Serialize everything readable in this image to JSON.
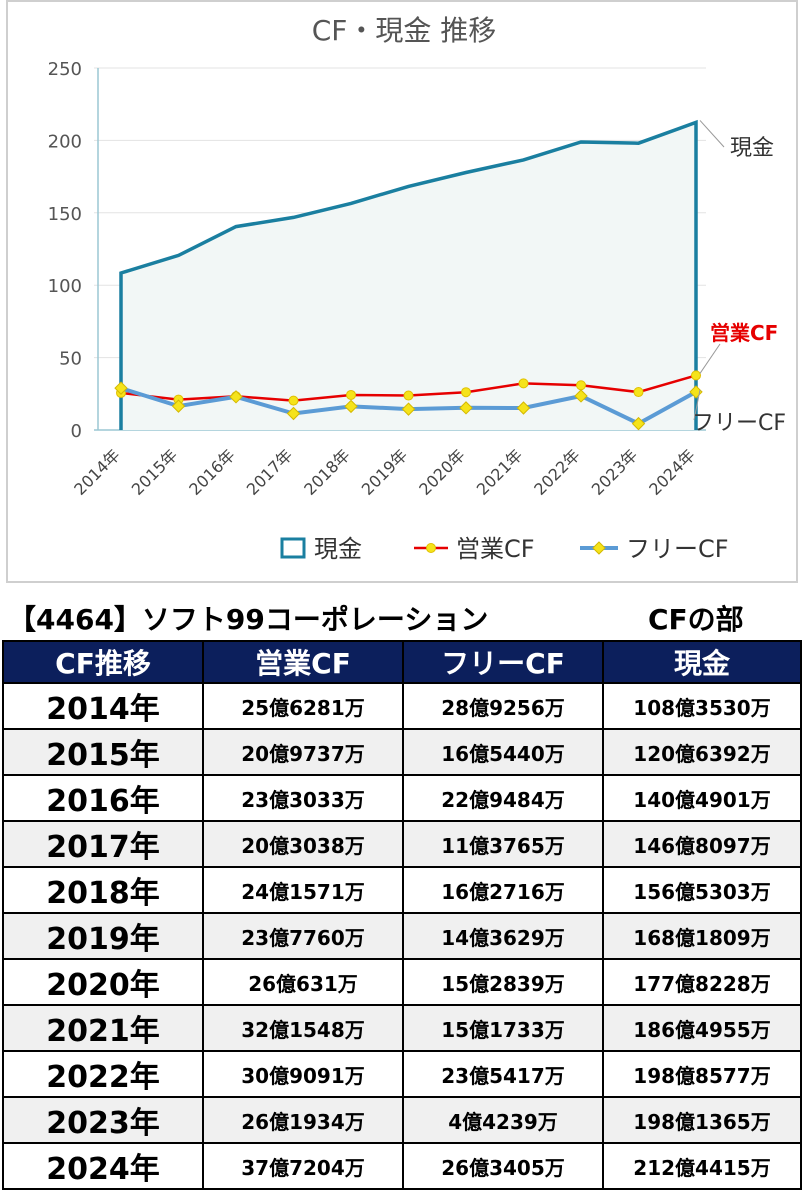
{
  "chart_data": {
    "type": "line",
    "title": "CF・現金 推移",
    "categories": [
      "2014年",
      "2015年",
      "2016年",
      "2017年",
      "2018年",
      "2019年",
      "2020年",
      "2021年",
      "2022年",
      "2023年",
      "2024年"
    ],
    "ylim": [
      0,
      250
    ],
    "yticks": [
      0,
      50,
      100,
      150,
      200,
      250
    ],
    "grid": true,
    "legend_position": "bottom",
    "series": [
      {
        "name": "現金",
        "style": "area",
        "color": "#1a7fa0",
        "fill": "#f2f7f6",
        "end_label": "現金",
        "end_label_color": "#333333",
        "values": [
          108.4,
          120.6,
          140.5,
          146.8,
          156.5,
          168.2,
          177.8,
          186.5,
          198.9,
          198.1,
          212.4
        ]
      },
      {
        "name": "営業CF",
        "style": "line-marker",
        "color": "#e60000",
        "marker": "#f5e31a",
        "end_label": "営業CF",
        "end_label_color": "#e60000",
        "values": [
          25.6,
          21.0,
          23.3,
          20.3,
          24.2,
          23.8,
          26.1,
          32.2,
          30.9,
          26.2,
          37.7
        ]
      },
      {
        "name": "フリーCF",
        "style": "line-marker",
        "color": "#5b9bd5",
        "marker": "#f5e31a",
        "end_label": "フリーCF",
        "end_label_color": "#333333",
        "values": [
          28.9,
          16.5,
          22.9,
          11.4,
          16.3,
          14.4,
          15.3,
          15.2,
          23.5,
          4.4,
          26.3
        ]
      }
    ]
  },
  "caption": {
    "company": "【4464】ソフト99コーポレーション",
    "section": "CFの部"
  },
  "table": {
    "headers": [
      "CF推移",
      "営業CF",
      "フリーCF",
      "現金"
    ],
    "rows": [
      [
        "2014年",
        "25億6281万",
        "28億9256万",
        "108億3530万"
      ],
      [
        "2015年",
        "20億9737万",
        "16億5440万",
        "120億6392万"
      ],
      [
        "2016年",
        "23億3033万",
        "22億9484万",
        "140億4901万"
      ],
      [
        "2017年",
        "20億3038万",
        "11億3765万",
        "146億8097万"
      ],
      [
        "2018年",
        "24億1571万",
        "16億2716万",
        "156億5303万"
      ],
      [
        "2019年",
        "23億7760万",
        "14億3629万",
        "168億1809万"
      ],
      [
        "2020年",
        "26億631万",
        "15億2839万",
        "177億8228万"
      ],
      [
        "2021年",
        "32億1548万",
        "15億1733万",
        "186億4955万"
      ],
      [
        "2022年",
        "30億9091万",
        "23億5417万",
        "198億8577万"
      ],
      [
        "2023年",
        "26億1934万",
        "4億4239万",
        "198億1365万"
      ],
      [
        "2024年",
        "37億7204万",
        "26億3405万",
        "212億4415万"
      ]
    ]
  }
}
